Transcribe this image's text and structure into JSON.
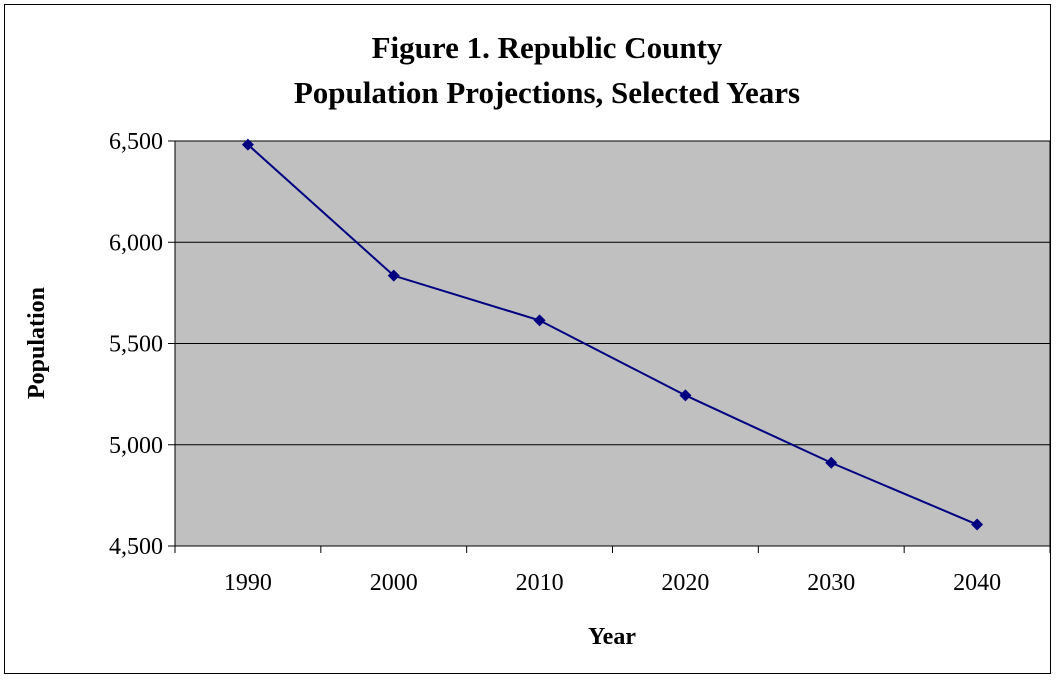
{
  "chart_data": {
    "type": "line",
    "title_lines": [
      "Figure 1. Republic County",
      "Population Projections, Selected Years"
    ],
    "xlabel": "Year",
    "ylabel": "Population",
    "categories": [
      "1990",
      "2000",
      "2010",
      "2020",
      "2030",
      "2040"
    ],
    "series": [
      {
        "values": [
          6482,
          5835,
          5614,
          5244,
          4911,
          4606
        ]
      }
    ],
    "ylim": [
      4500,
      6500
    ],
    "yticks": [
      4500,
      5000,
      5500,
      6000,
      6500
    ],
    "ytick_labels": [
      "4,500",
      "5,000",
      "5,500",
      "6,000",
      "6,500"
    ],
    "grid": "horizontal",
    "legend": "none",
    "colors": {
      "plot_background": "#c0c0c0",
      "series_line": "#000080",
      "marker": "#000080",
      "gridline": "#000000"
    },
    "marker": "diamond"
  }
}
